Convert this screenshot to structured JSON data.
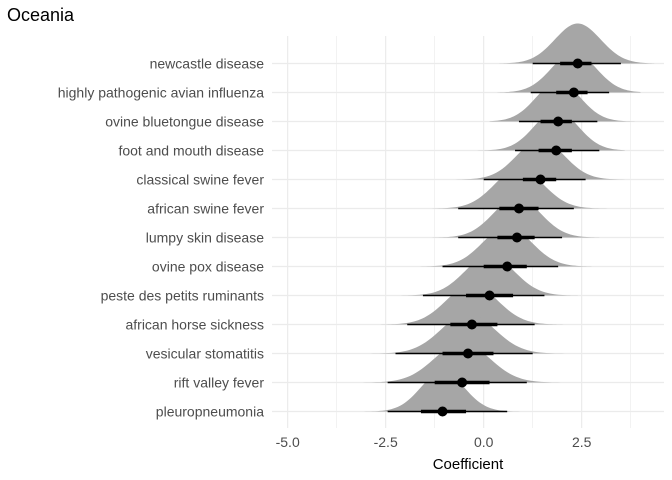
{
  "chart_data": {
    "type": "ridgeline-interval",
    "title": "Oceania",
    "xlabel": "Coefficient",
    "ylabel": "",
    "xlim": [
      -5.4,
      4.6
    ],
    "xticks": [
      -5.0,
      -2.5,
      0.0,
      2.5
    ],
    "xtick_labels": [
      "-5.0",
      "-2.5",
      "0.0",
      "2.5"
    ],
    "grid": true,
    "colors": {
      "density": "#a6a6a6",
      "interval": "#000000",
      "grid": "#ebebeb"
    },
    "categories": [
      "newcastle disease",
      "highly pathogenic avian influenza",
      "ovine bluetongue disease",
      "foot and mouth disease",
      "classical swine fever",
      "african swine fever",
      "lumpy skin disease",
      "ovine pox disease",
      "peste des petits ruminants",
      "african horse sickness",
      "vesicular stomatitis",
      "rift valley fever",
      "pleuropneumonia"
    ],
    "series": [
      {
        "median": 2.4,
        "ci66": [
          1.95,
          2.75
        ],
        "ci95": [
          1.25,
          3.5
        ],
        "range": [
          0.4,
          4.35
        ],
        "sd": 0.58
      },
      {
        "median": 2.3,
        "ci66": [
          1.85,
          2.65
        ],
        "ci95": [
          1.2,
          3.2
        ],
        "range": [
          0.35,
          4.0
        ],
        "sd": 0.57
      },
      {
        "median": 1.9,
        "ci66": [
          1.45,
          2.25
        ],
        "ci95": [
          0.9,
          2.9
        ],
        "range": [
          0.15,
          3.85
        ],
        "sd": 0.56
      },
      {
        "median": 1.85,
        "ci66": [
          1.4,
          2.25
        ],
        "ci95": [
          0.8,
          2.95
        ],
        "range": [
          -0.3,
          3.6
        ],
        "sd": 0.56
      },
      {
        "median": 1.45,
        "ci66": [
          1.0,
          1.85
        ],
        "ci95": [
          0.0,
          2.6
        ],
        "range": [
          -3.15,
          4.1
        ],
        "sd": 0.6
      },
      {
        "median": 0.9,
        "ci66": [
          0.4,
          1.4
        ],
        "ci95": [
          -0.65,
          2.3
        ],
        "range": [
          -2.45,
          3.5
        ],
        "sd": 0.62
      },
      {
        "median": 0.85,
        "ci66": [
          0.35,
          1.3
        ],
        "ci95": [
          -0.65,
          2.0
        ],
        "range": [
          -1.8,
          2.95
        ],
        "sd": 0.6
      },
      {
        "median": 0.6,
        "ci66": [
          0.0,
          1.1
        ],
        "ci95": [
          -1.05,
          1.9
        ],
        "range": [
          -2.0,
          2.75
        ],
        "sd": 0.62
      },
      {
        "median": 0.15,
        "ci66": [
          -0.45,
          0.75
        ],
        "ci95": [
          -1.55,
          1.55
        ],
        "range": [
          -2.5,
          2.4
        ],
        "sd": 0.63
      },
      {
        "median": -0.3,
        "ci66": [
          -0.85,
          0.35
        ],
        "ci95": [
          -1.95,
          1.3
        ],
        "range": [
          -2.75,
          2.1
        ],
        "sd": 0.65
      },
      {
        "median": -0.4,
        "ci66": [
          -1.05,
          0.25
        ],
        "ci95": [
          -2.25,
          1.25
        ],
        "range": [
          -4.4,
          2.7
        ],
        "sd": 0.68
      },
      {
        "median": -0.55,
        "ci66": [
          -1.25,
          0.15
        ],
        "ci95": [
          -2.45,
          1.1
        ],
        "range": [
          -4.15,
          2.25
        ],
        "sd": 0.7
      },
      {
        "median": -1.05,
        "ci66": [
          -1.6,
          -0.45
        ],
        "ci95": [
          -2.45,
          0.6
        ],
        "range": [
          -3.75,
          1.45
        ],
        "sd": 0.55
      }
    ]
  }
}
